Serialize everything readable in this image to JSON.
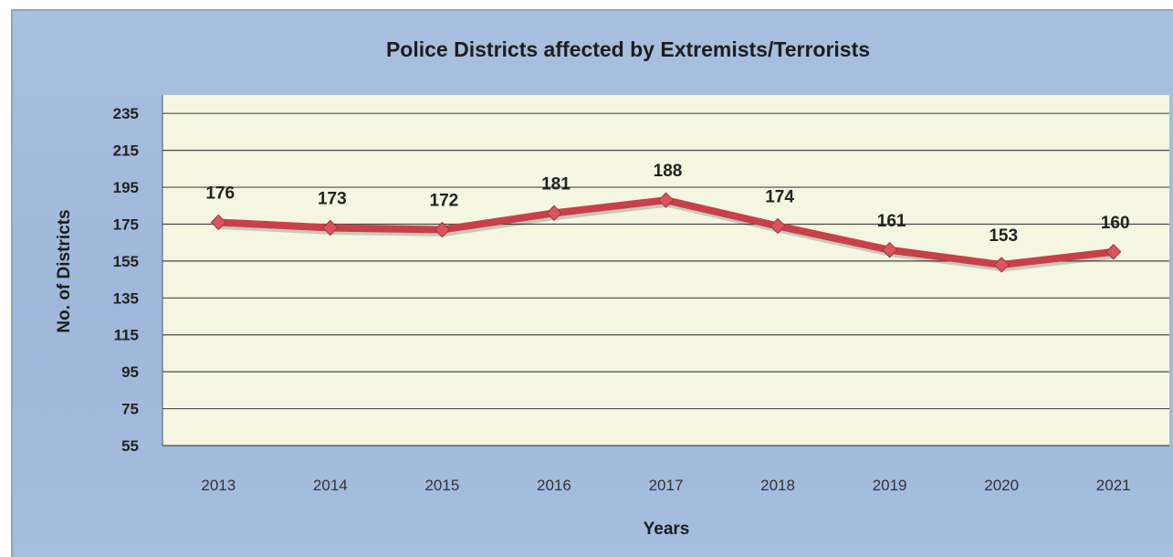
{
  "chart_data": {
    "type": "line",
    "title": "Police Districts affected by Extremists/Terrorists",
    "xlabel": "Years",
    "ylabel": "No. of Districts",
    "categories": [
      "2013",
      "2014",
      "2015",
      "2016",
      "2017",
      "2018",
      "2019",
      "2020",
      "2021"
    ],
    "series": [
      {
        "values": [
          176,
          173,
          172,
          181,
          188,
          174,
          161,
          153,
          160
        ]
      }
    ],
    "yticks": [
      55,
      75,
      95,
      115,
      135,
      155,
      175,
      195,
      215,
      235
    ],
    "ylim": [
      55,
      245
    ],
    "grid": true,
    "legend": "none",
    "colors": {
      "line": "#c8404a",
      "marker": "#d9555e",
      "plot_bg": "#f4f6e2",
      "frame_bg": "#a6bddf",
      "grid": "#4a4a4a"
    }
  }
}
